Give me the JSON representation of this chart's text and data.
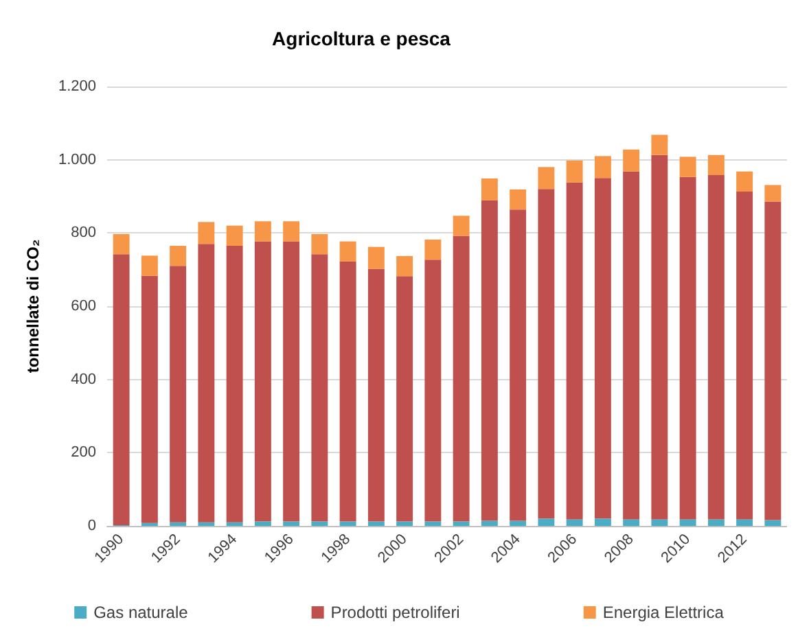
{
  "chart_data": {
    "type": "bar",
    "title": "Agricoltura e pesca",
    "ylabel": "tonnellate di CO₂",
    "stacked": true,
    "grid": "y",
    "legend": "bottom",
    "categories": [
      "1990",
      null,
      "1992",
      null,
      "1994",
      null,
      "1996",
      null,
      "1998",
      null,
      "2000",
      null,
      "2002",
      null,
      "2004",
      null,
      "2006",
      null,
      "2008",
      null,
      "2010",
      null,
      "2012",
      null
    ],
    "ylim": [
      0,
      1200
    ],
    "yticks": [
      0,
      200,
      400,
      600,
      800,
      {
        "value": 1000,
        "label": "1.000"
      },
      {
        "value": 1200,
        "label": "1.200"
      }
    ],
    "series": [
      {
        "name": "Gas naturale",
        "color": "#4bacc6",
        "values": [
          2,
          8,
          10,
          10,
          10,
          12,
          12,
          12,
          12,
          12,
          12,
          12,
          12,
          14,
          14,
          20,
          18,
          20,
          18,
          18,
          18,
          18,
          18,
          16
        ]
      },
      {
        "name": "Prodotti petroliferi",
        "color": "#c0504d",
        "values": [
          740,
          675,
          700,
          760,
          755,
          765,
          765,
          730,
          710,
          690,
          670,
          715,
          780,
          875,
          850,
          900,
          920,
          930,
          950,
          995,
          935,
          940,
          895,
          870
        ]
      },
      {
        "name": "Energia Elettrica",
        "color": "#f79646",
        "values": [
          55,
          55,
          55,
          60,
          55,
          55,
          55,
          55,
          55,
          60,
          55,
          55,
          55,
          60,
          55,
          60,
          60,
          60,
          60,
          55,
          55,
          55,
          55,
          45
        ]
      }
    ]
  }
}
